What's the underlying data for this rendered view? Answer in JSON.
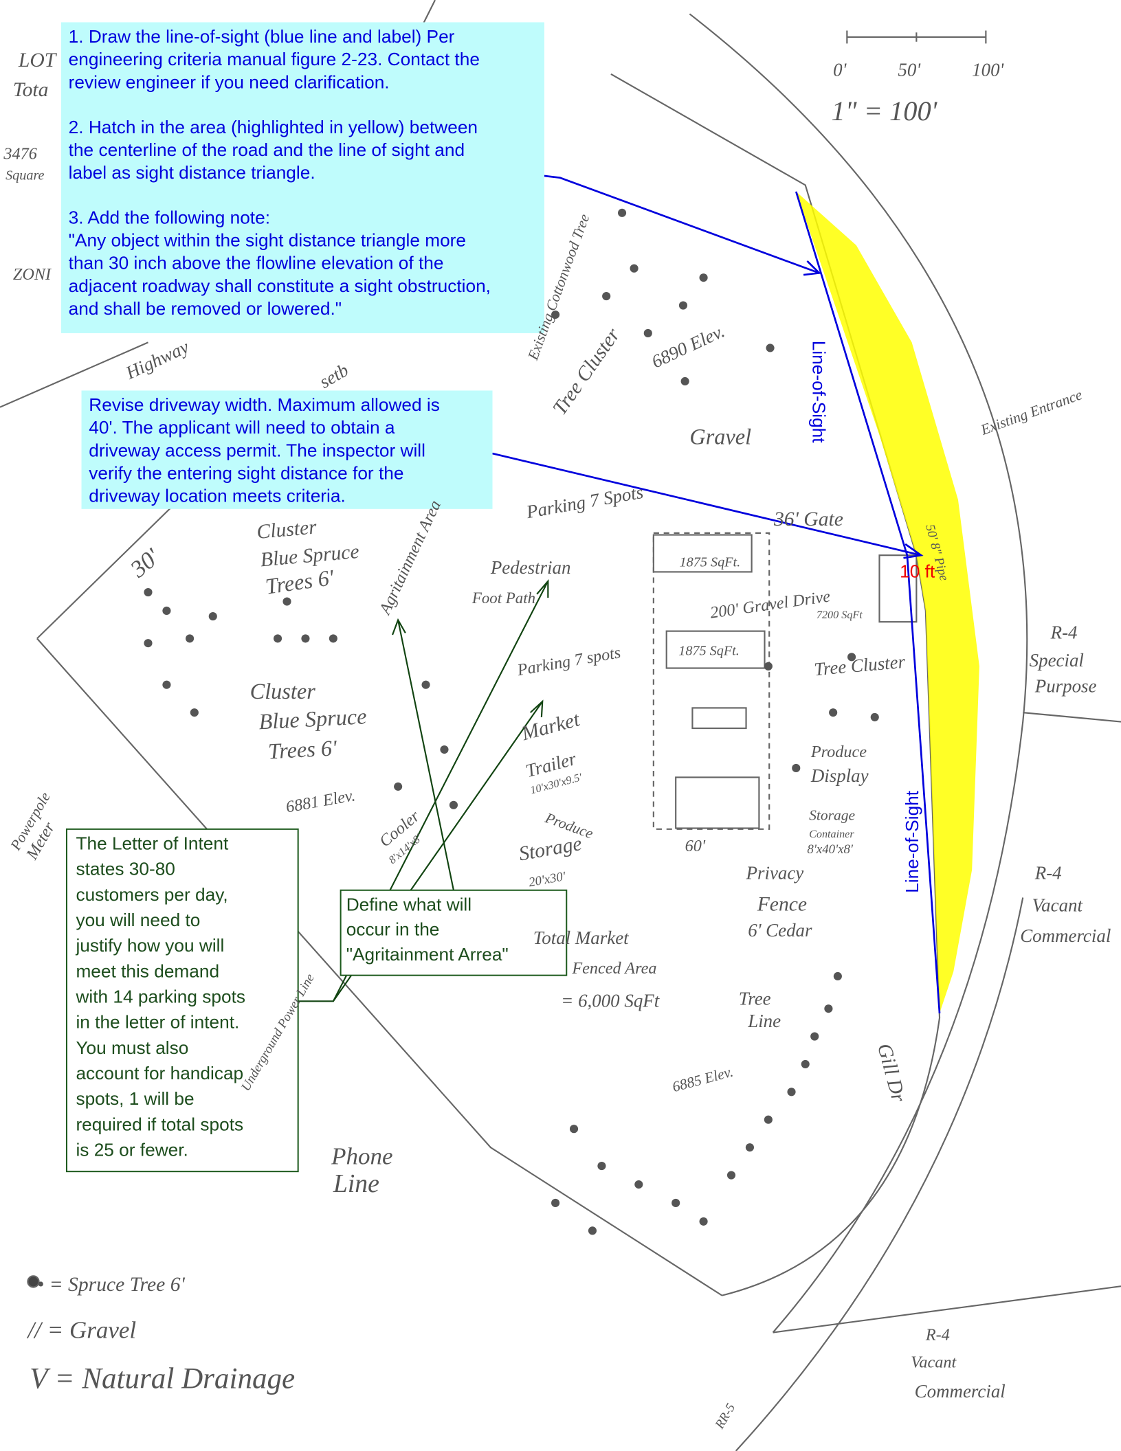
{
  "comments": [
    {
      "paragraphs": [
        [
          "1. Draw the line-of-sight (blue line and label) Per",
          "engineering criteria manual figure 2-23.  Contact the",
          "review engineer if you need clarification."
        ],
        [
          "2. Hatch in the area (highlighted in yellow) between",
          "the centerline of the road and the line of sight and",
          "label as sight distance triangle."
        ],
        [
          "3. Add the following note:",
          "\"Any object within the sight distance triangle more",
          "than 30 inch above the flowline elevation of the",
          "adjacent roadway shall constitute a sight obstruction,",
          "and shall be removed or lowered.\""
        ]
      ]
    },
    {
      "paragraphs": [
        [
          "Revise driveway width.  Maximum allowed is",
          "40'.  The applicant will need to obtain a",
          "driveway access permit.  The inspector will",
          "verify the entering sight distance for the",
          "driveway location meets criteria."
        ]
      ]
    },
    {
      "paragraphs": [
        [
          "The Letter of Intent",
          "states 30-80",
          "customers per day,",
          "you will need to",
          "justify how you will",
          "meet this demand",
          "with 14 parking spots",
          "in the letter of intent.",
          "You must also",
          "account for handicap",
          "spots, 1 will be",
          "required if total spots",
          "is 25 or fewer."
        ]
      ]
    },
    {
      "paragraphs": [
        [
          "Define what will",
          "occur in the",
          "\"Agritainment Arrea\""
        ]
      ]
    }
  ],
  "markup_labels": {
    "line_of_sight_upper": "Line-of-Sight",
    "line_of_sight_lower": "Line-of-Sight",
    "driveway_width": "10 ft"
  },
  "sketch_labels": [
    "0'",
    "50'",
    "100'",
    "1\" = 100'",
    "LOT",
    "Tota",
    "3476",
    "Square",
    "ZONI",
    "Highway",
    "setb",
    "Existing Cottonwood Tree",
    "Tree Cluster",
    "6890 Elev.",
    "Gravel",
    "36' Gate",
    "Parking 7 Spots",
    "Pedestrian",
    "Foot Path",
    "1875 SqFt.",
    "200' Gravel Drive",
    "7200 SqFt",
    "1875 SqFt.",
    "Existing Entrance",
    "50' 8\" Pipe",
    "Cluster",
    "Blue Spruce",
    "Trees 6'",
    "30'",
    "Agritainment Area",
    "Parking 7 spots",
    "Tree Cluster",
    "Cluster",
    "Blue Spruce",
    "Trees 6'",
    "Market",
    "Trailer",
    "10'x30'x9.5'",
    "Produce",
    "Display",
    "Storage",
    "Container",
    "8'x40'x8'",
    "R-4",
    "Special",
    "Purpose",
    "Powerpole",
    "Meter",
    "6881 Elev.",
    "Cooler",
    "8'x14'x8'",
    "Produce",
    "Storage",
    "20'x30'",
    "60'",
    "Privacy",
    "Fence",
    "6' Cedar",
    "R-4",
    "Vacant",
    "Commercial",
    "Total Market",
    "Fenced Area",
    "= 6,000 SqFt",
    "Tree",
    "Line",
    "6885 Elev.",
    "Gill Dr",
    "Underground Power Line",
    "Phone",
    "Line",
    "• = Spruce Tree 6'",
    "// = Gravel",
    "V = Natural Drainage",
    "R-4",
    "Vacant",
    "Commercial",
    "RR-5"
  ]
}
